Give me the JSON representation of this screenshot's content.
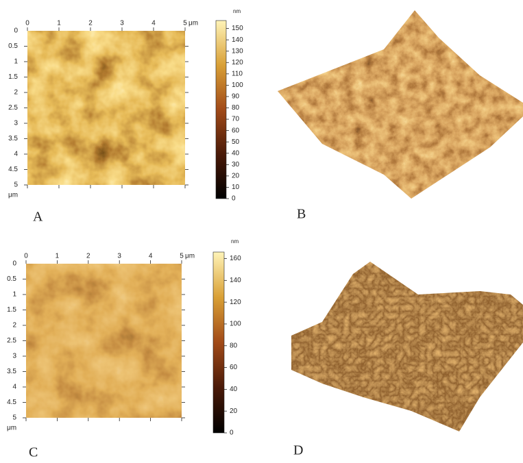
{
  "panels": [
    {
      "label": "A",
      "x_ticks": [
        0,
        1,
        2,
        3,
        4,
        5
      ],
      "x_unit": "μm",
      "y_ticks": [
        0.5,
        1,
        1.5,
        2,
        2.5,
        3,
        3.5,
        4,
        4.5,
        5
      ],
      "y_unit": "μm",
      "colorbar": {
        "unit": "nm",
        "lim": [
          0,
          157
        ],
        "ticks": [
          0,
          10,
          20,
          30,
          40,
          50,
          60,
          70,
          80,
          90,
          100,
          110,
          120,
          130,
          140,
          150
        ]
      }
    },
    {
      "label": "B"
    },
    {
      "label": "C",
      "x_ticks": [
        0,
        1,
        2,
        3,
        4,
        5
      ],
      "x_unit": "μm",
      "y_ticks": [
        0.5,
        1,
        1.5,
        2,
        2.5,
        3,
        3.5,
        4,
        4.5,
        5
      ],
      "y_unit": "μm",
      "colorbar": {
        "unit": "nm",
        "lim": [
          0,
          166
        ],
        "ticks": [
          0,
          20,
          40,
          60,
          80,
          100,
          120,
          140,
          160
        ]
      }
    },
    {
      "label": "D"
    }
  ]
}
